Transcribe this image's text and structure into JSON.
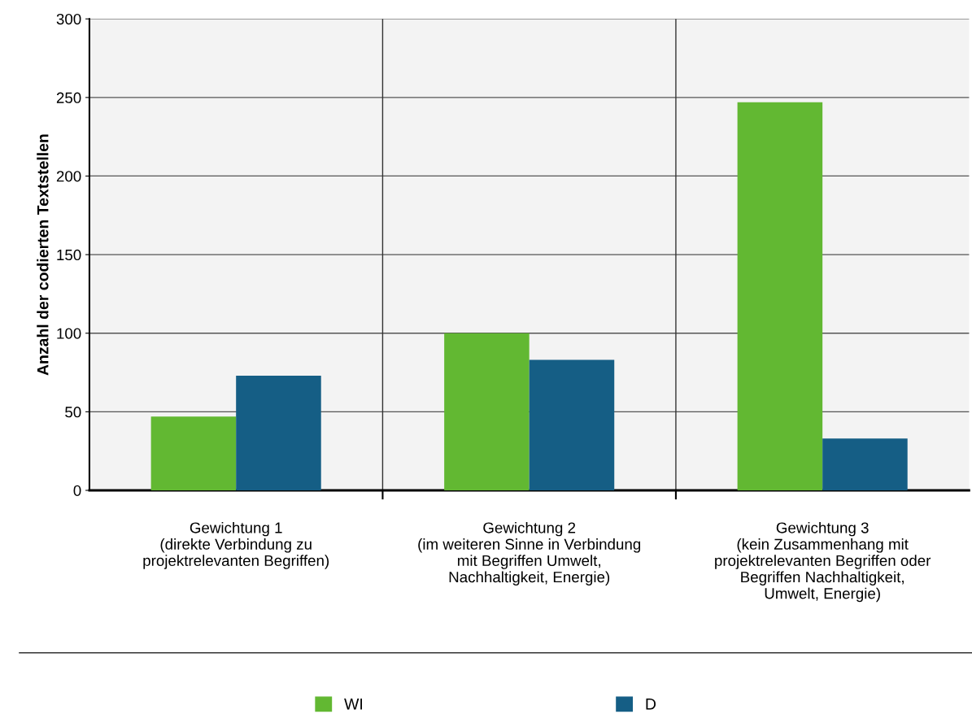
{
  "chart_data": {
    "type": "bar",
    "ylabel": "Anzahl der codierten Textstellen",
    "categories": [
      "Gewichtung 1\n(direkte Verbindung zu\nprojektrelevanten Begriffen)",
      "Gewichtung 2\n(im weiteren Sinne in Verbindung\nmit Begriffen Umwelt,\nNachhaltigkeit, Energie)",
      "Gewichtung 3\n(kein Zusammenhang mit\nprojektrelevanten Begriffen oder\nBegriffen Nachhaltigkeit,\nUmwelt, Energie)"
    ],
    "series": [
      {
        "name": "WI",
        "color": "#62b832",
        "values": [
          47,
          100,
          247
        ]
      },
      {
        "name": "D",
        "color": "#155e85",
        "values": [
          73,
          83,
          33
        ]
      }
    ],
    "ylim": [
      0,
      300
    ],
    "yticks": [
      0,
      50,
      100,
      150,
      200,
      250,
      300
    ],
    "grid": "y",
    "legend": "bottom"
  }
}
